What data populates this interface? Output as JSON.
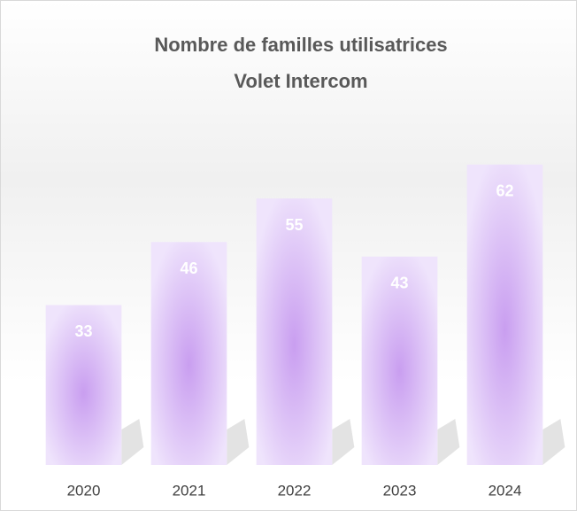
{
  "chart_data": {
    "type": "bar",
    "title": [
      "Nombre de familles utilisatrices",
      "Volet Intercom"
    ],
    "categories": [
      "2020",
      "2021",
      "2022",
      "2023",
      "2024"
    ],
    "values": [
      33,
      46,
      55,
      43,
      62
    ],
    "color": "#c9a0f0",
    "ylim": [
      0,
      70
    ]
  }
}
